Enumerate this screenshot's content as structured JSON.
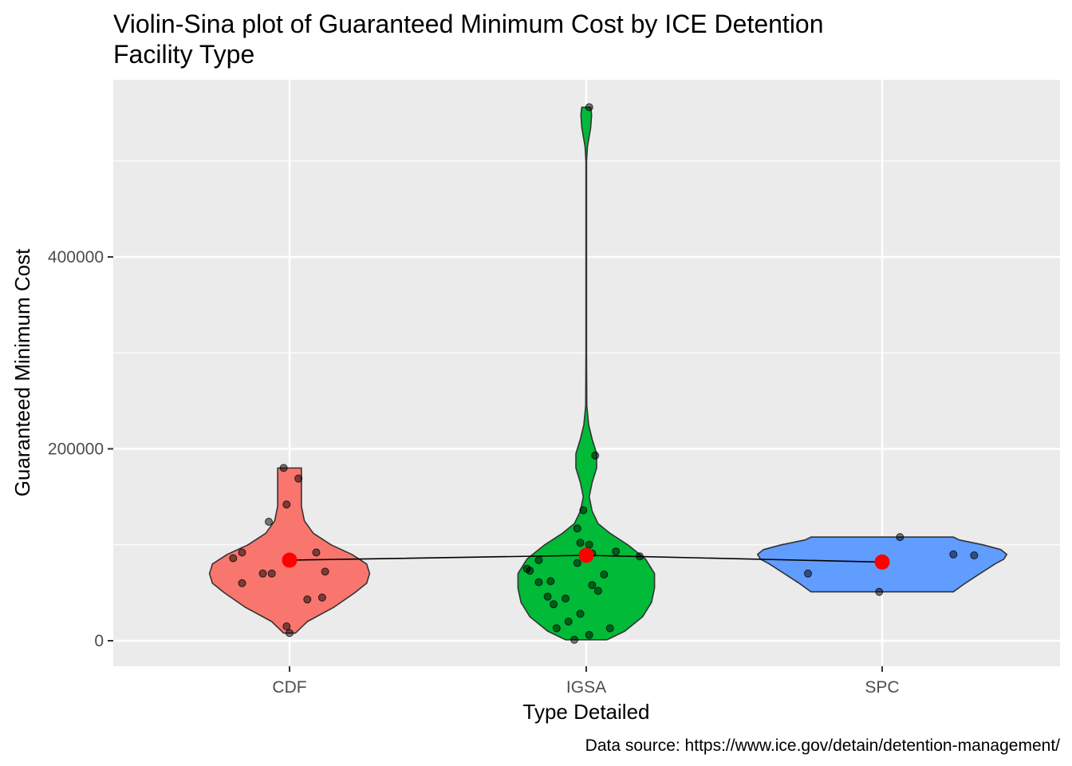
{
  "chart_data": {
    "type": "violin-sina",
    "title_lines": [
      "Violin-Sina plot of Guaranteed Minimum Cost by ICE Detention",
      "Facility Type"
    ],
    "xlabel": "Type Detailed",
    "ylabel": "Guaranteed Minimum Cost",
    "caption": "Data source: https://www.ice.gov/detain/detention-management/",
    "categories": [
      "CDF",
      "IGSA",
      "SPC"
    ],
    "y_ticks": [
      0,
      200000,
      400000
    ],
    "ylim": [
      -27000,
      580000
    ],
    "grid": true,
    "background": "#EBEBEB",
    "colors": {
      "CDF": "#F8766D",
      "IGSA": "#00BA38",
      "SPC": "#619CFF",
      "mean": "#FF0000"
    },
    "means": [
      84000,
      89000,
      82000
    ],
    "violins": [
      {
        "category": "CDF",
        "min": 8000,
        "max": 180000,
        "profile": [
          [
            8000,
            0.02
          ],
          [
            20000,
            0.06
          ],
          [
            35000,
            0.15
          ],
          [
            50000,
            0.22
          ],
          [
            60000,
            0.26
          ],
          [
            70000,
            0.27
          ],
          [
            80000,
            0.26
          ],
          [
            90000,
            0.21
          ],
          [
            100000,
            0.14
          ],
          [
            112000,
            0.08
          ],
          [
            125000,
            0.05
          ],
          [
            140000,
            0.04
          ],
          [
            160000,
            0.04
          ],
          [
            180000,
            0.04
          ]
        ]
      },
      {
        "category": "IGSA",
        "min": 1000,
        "max": 556000,
        "profile": [
          [
            1000,
            0.07
          ],
          [
            10000,
            0.13
          ],
          [
            25000,
            0.19
          ],
          [
            40000,
            0.22
          ],
          [
            55000,
            0.23
          ],
          [
            70000,
            0.23
          ],
          [
            85000,
            0.2
          ],
          [
            100000,
            0.14
          ],
          [
            112000,
            0.08
          ],
          [
            122000,
            0.04
          ],
          [
            135000,
            0.02
          ],
          [
            150000,
            0.01
          ],
          [
            165000,
            0.02
          ],
          [
            180000,
            0.035
          ],
          [
            195000,
            0.035
          ],
          [
            210000,
            0.02
          ],
          [
            225000,
            0.008
          ],
          [
            245000,
            0.002
          ],
          [
            300000,
            0.001
          ],
          [
            400000,
            0.001
          ],
          [
            500000,
            0.001
          ],
          [
            515000,
            0.004
          ],
          [
            535000,
            0.015
          ],
          [
            548000,
            0.018
          ],
          [
            556000,
            0.015
          ]
        ]
      },
      {
        "category": "SPC",
        "min": 51000,
        "max": 108000,
        "profile": [
          [
            51000,
            0.24
          ],
          [
            60000,
            0.28
          ],
          [
            70000,
            0.33
          ],
          [
            80000,
            0.38
          ],
          [
            85000,
            0.41
          ],
          [
            90000,
            0.42
          ],
          [
            95000,
            0.4
          ],
          [
            100000,
            0.34
          ],
          [
            105000,
            0.26
          ],
          [
            108000,
            0.24
          ]
        ]
      }
    ],
    "points": [
      {
        "category": "CDF",
        "y": 180000,
        "offset": -0.02
      },
      {
        "category": "CDF",
        "y": 169000,
        "offset": 0.03
      },
      {
        "category": "CDF",
        "y": 142000,
        "offset": -0.01
      },
      {
        "category": "CDF",
        "y": 124000,
        "offset": -0.07
      },
      {
        "category": "CDF",
        "y": 92000,
        "offset": -0.16
      },
      {
        "category": "CDF",
        "y": 92000,
        "offset": 0.09
      },
      {
        "category": "CDF",
        "y": 86000,
        "offset": -0.19
      },
      {
        "category": "CDF",
        "y": 72000,
        "offset": 0.12
      },
      {
        "category": "CDF",
        "y": 70000,
        "offset": -0.09
      },
      {
        "category": "CDF",
        "y": 70000,
        "offset": -0.06
      },
      {
        "category": "CDF",
        "y": 60000,
        "offset": -0.16
      },
      {
        "category": "CDF",
        "y": 45000,
        "offset": 0.11
      },
      {
        "category": "CDF",
        "y": 43000,
        "offset": 0.06
      },
      {
        "category": "CDF",
        "y": 15000,
        "offset": -0.01
      },
      {
        "category": "CDF",
        "y": 8000,
        "offset": 0.0
      },
      {
        "category": "IGSA",
        "y": 556000,
        "offset": 0.01
      },
      {
        "category": "IGSA",
        "y": 193000,
        "offset": 0.03
      },
      {
        "category": "IGSA",
        "y": 136000,
        "offset": -0.01
      },
      {
        "category": "IGSA",
        "y": 117000,
        "offset": -0.03
      },
      {
        "category": "IGSA",
        "y": 102000,
        "offset": -0.02
      },
      {
        "category": "IGSA",
        "y": 100000,
        "offset": 0.01
      },
      {
        "category": "IGSA",
        "y": 93000,
        "offset": 0.1
      },
      {
        "category": "IGSA",
        "y": 91000,
        "offset": 0.02
      },
      {
        "category": "IGSA",
        "y": 88000,
        "offset": 0.18
      },
      {
        "category": "IGSA",
        "y": 84000,
        "offset": -0.16
      },
      {
        "category": "IGSA",
        "y": 81000,
        "offset": -0.03
      },
      {
        "category": "IGSA",
        "y": 75000,
        "offset": -0.2
      },
      {
        "category": "IGSA",
        "y": 73000,
        "offset": -0.19
      },
      {
        "category": "IGSA",
        "y": 69000,
        "offset": 0.06
      },
      {
        "category": "IGSA",
        "y": 62000,
        "offset": -0.12
      },
      {
        "category": "IGSA",
        "y": 61000,
        "offset": -0.16
      },
      {
        "category": "IGSA",
        "y": 58000,
        "offset": 0.02
      },
      {
        "category": "IGSA",
        "y": 52000,
        "offset": 0.04
      },
      {
        "category": "IGSA",
        "y": 46000,
        "offset": -0.13
      },
      {
        "category": "IGSA",
        "y": 44000,
        "offset": -0.07
      },
      {
        "category": "IGSA",
        "y": 38000,
        "offset": -0.11
      },
      {
        "category": "IGSA",
        "y": 28000,
        "offset": -0.02
      },
      {
        "category": "IGSA",
        "y": 20000,
        "offset": -0.06
      },
      {
        "category": "IGSA",
        "y": 13000,
        "offset": -0.1
      },
      {
        "category": "IGSA",
        "y": 13000,
        "offset": 0.08
      },
      {
        "category": "IGSA",
        "y": 6000,
        "offset": 0.01
      },
      {
        "category": "IGSA",
        "y": 1000,
        "offset": -0.04
      },
      {
        "category": "SPC",
        "y": 108000,
        "offset": 0.06
      },
      {
        "category": "SPC",
        "y": 90000,
        "offset": 0.24
      },
      {
        "category": "SPC",
        "y": 89000,
        "offset": 0.31
      },
      {
        "category": "SPC",
        "y": 70000,
        "offset": -0.25
      },
      {
        "category": "SPC",
        "y": 51000,
        "offset": -0.01
      }
    ]
  }
}
